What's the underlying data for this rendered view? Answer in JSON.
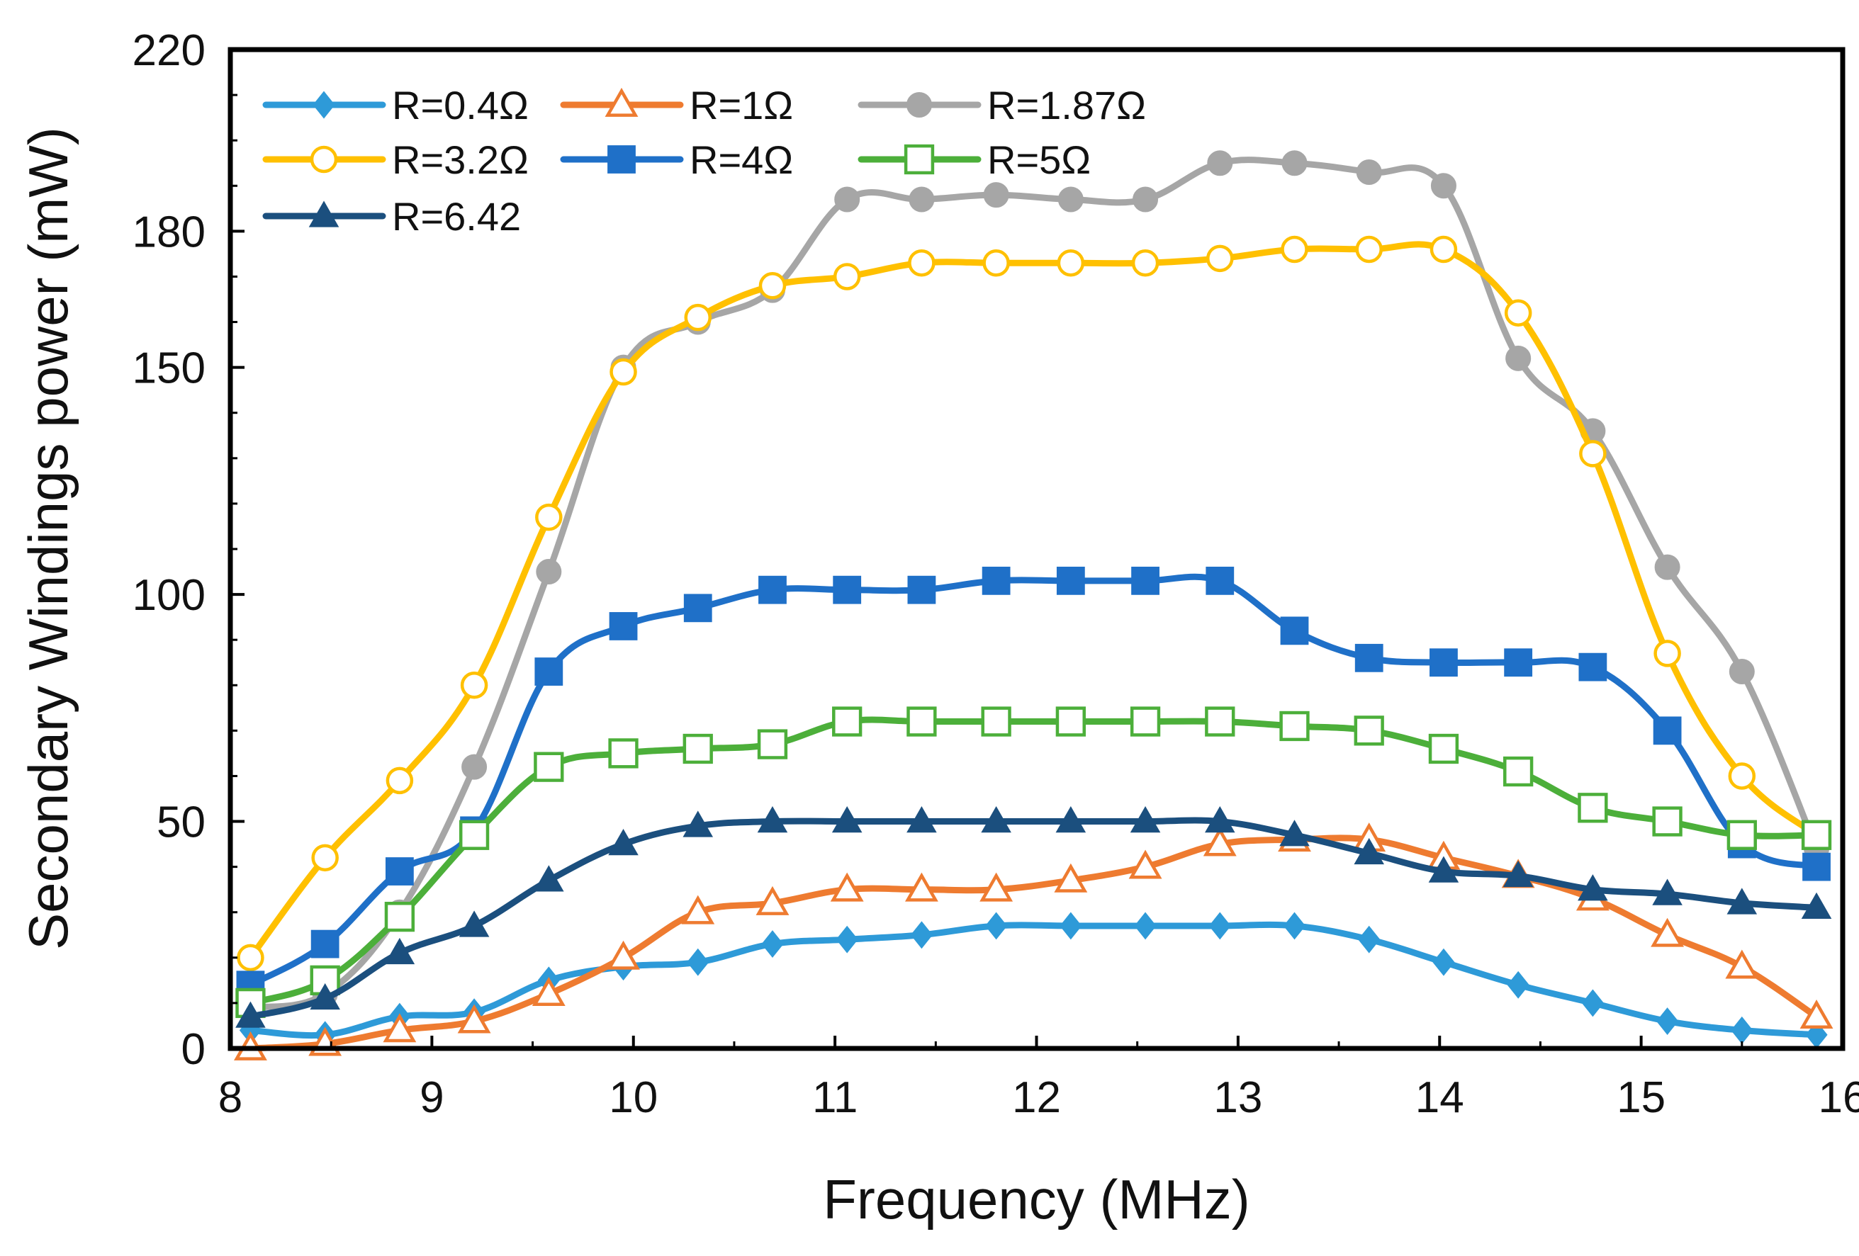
{
  "chart_data": {
    "type": "line",
    "title": "",
    "xlabel": "Frequency (MHz)",
    "ylabel": "Secondary Windings power (mW)",
    "xlim": [
      8,
      16
    ],
    "ylim": [
      0,
      220
    ],
    "xticks": [
      "8",
      "9",
      "10",
      "11",
      "12",
      "13",
      "14",
      "15",
      "16"
    ],
    "yticks": [
      "0",
      "50",
      "100",
      "150",
      "180",
      "220"
    ],
    "ytick_values": [
      0,
      50,
      100,
      150,
      180,
      220
    ],
    "legend_position": "top-left",
    "x": [
      8.1,
      8.47,
      8.84,
      9.21,
      9.58,
      9.95,
      10.32,
      10.69,
      11.06,
      11.43,
      11.8,
      12.17,
      12.54,
      12.91,
      13.28,
      13.65,
      14.02,
      14.39,
      14.76,
      15.13,
      15.5,
      15.87
    ],
    "series": [
      {
        "name": "R=0.4Ω",
        "color": "#2E9AD8",
        "marker": "diamond",
        "filled": true,
        "values": [
          4,
          3,
          7,
          8,
          15,
          18,
          19,
          23,
          24,
          25,
          27,
          27,
          27,
          27,
          27,
          24,
          19,
          14,
          10,
          6,
          4,
          3
        ]
      },
      {
        "name": "R=1Ω",
        "color": "#EE7B30",
        "marker": "triangle",
        "filled": false,
        "values": [
          0,
          1,
          4,
          6,
          12,
          20,
          30,
          32,
          35,
          35,
          35,
          37,
          40,
          45,
          46,
          46,
          42,
          38,
          33,
          25,
          18,
          7
        ]
      },
      {
        "name": "R=1.87Ω",
        "color": "#A6A6A6",
        "marker": "circle",
        "filled": true,
        "values": [
          9,
          12,
          30,
          62,
          105,
          150,
          160,
          167,
          187,
          187,
          188,
          187,
          187,
          195,
          195,
          193,
          190,
          152,
          136,
          106,
          83,
          44
        ]
      },
      {
        "name": "R=3.2Ω",
        "color": "#FFC000",
        "marker": "circle",
        "filled": false,
        "values": [
          20,
          42,
          59,
          80,
          117,
          149,
          161,
          168,
          170,
          173,
          173,
          173,
          173,
          174,
          176,
          176,
          176,
          162,
          131,
          87,
          60,
          47
        ]
      },
      {
        "name": "R=4Ω",
        "color": "#1F70C8",
        "marker": "square",
        "filled": true,
        "values": [
          14,
          23,
          39,
          48,
          83,
          93,
          97,
          101,
          101,
          101,
          103,
          103,
          103,
          103,
          92,
          86,
          85,
          85,
          84,
          70,
          45,
          40
        ]
      },
      {
        "name": "R=5Ω",
        "color": "#4CAF3A",
        "marker": "square",
        "filled": false,
        "values": [
          10,
          15,
          29,
          47,
          62,
          65,
          66,
          67,
          72,
          72,
          72,
          72,
          72,
          72,
          71,
          70,
          66,
          61,
          53,
          50,
          47,
          47
        ]
      },
      {
        "name": "R=6.42",
        "color": "#1B4F7E",
        "marker": "triangle",
        "filled": true,
        "values": [
          7,
          11,
          21,
          27,
          37,
          45,
          49,
          50,
          50,
          50,
          50,
          50,
          50,
          50,
          47,
          43,
          39,
          38,
          35,
          34,
          32,
          31
        ]
      }
    ]
  }
}
